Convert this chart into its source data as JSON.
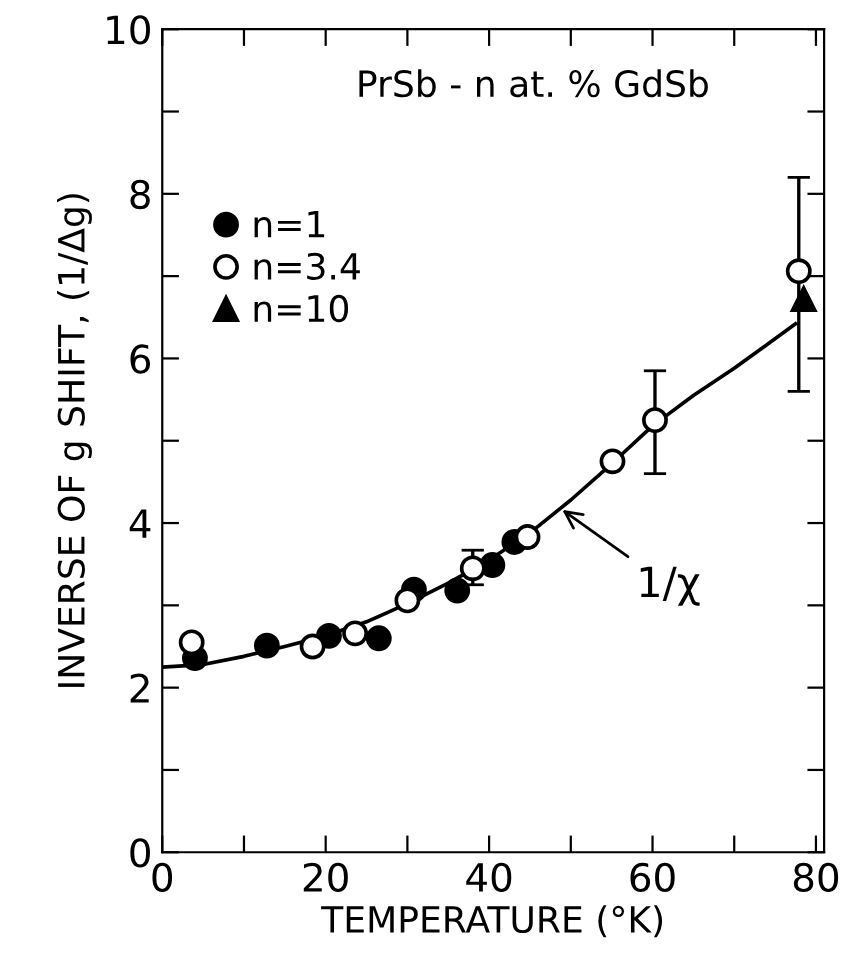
{
  "chart_data": {
    "type": "scatter",
    "xlabel": "TEMPERATURE (°K)",
    "ylabel": "INVERSE OF g SHIFT, (1/Δg)",
    "xlim": [
      0,
      81
    ],
    "ylim": [
      0,
      10
    ],
    "xticks": [
      0,
      {
        "value": 10,
        "label": null
      },
      20,
      {
        "value": 30,
        "label": null
      },
      40,
      {
        "value": 50,
        "label": null
      },
      60,
      {
        "value": 70,
        "label": null
      },
      80
    ],
    "yticks": [
      0,
      {
        "value": 1,
        "label": null
      },
      2,
      {
        "value": 3,
        "label": null
      },
      4,
      {
        "value": 5,
        "label": null
      },
      6,
      {
        "value": 7,
        "label": null
      },
      8,
      {
        "value": 9,
        "label": null
      },
      10
    ],
    "grid": false,
    "legend": "top left",
    "annotations": [
      "PrSb - n at. % GdSb",
      {
        "text": "1/χ",
        "x": 48.4,
        "y": 4.2
      }
    ],
    "series": [
      {
        "name": "n=1",
        "color": "#000000",
        "marker": "circle",
        "x": [
          4.0,
          12.8,
          20.4,
          26.5,
          30.8,
          36.1,
          40.4,
          43.1
        ],
        "values": [
          2.36,
          2.51,
          2.63,
          2.6,
          3.19,
          3.18,
          3.49,
          3.77
        ]
      },
      {
        "name": "n=3.4",
        "color": "#ffffff",
        "marker": "circle",
        "x": [
          3.6,
          18.4,
          23.6,
          30.0,
          38.0,
          44.7,
          55.1,
          60.3,
          77.9
        ],
        "values": [
          2.55,
          2.5,
          2.66,
          3.06,
          3.45,
          3.83,
          4.75,
          5.25,
          7.06
        ],
        "errors": [
          null,
          null,
          null,
          null,
          [
            3.25,
            3.67
          ],
          null,
          null,
          [
            4.6,
            5.85
          ],
          [
            5.6,
            8.2
          ]
        ]
      },
      {
        "name": "n=10",
        "color": "#000000",
        "marker": "triangle",
        "x": [
          78.5
        ],
        "values": [
          6.72
        ]
      },
      {
        "type": "line",
        "color": "#000000",
        "marker": "none",
        "x": [
          0,
          5,
          10,
          15,
          20,
          25,
          30,
          35,
          40,
          45,
          50,
          55,
          60,
          65,
          70,
          77.5
        ],
        "values": [
          2.25,
          2.28,
          2.38,
          2.5,
          2.63,
          2.8,
          3.02,
          3.27,
          3.55,
          3.88,
          4.28,
          4.72,
          5.18,
          5.55,
          5.88,
          6.42
        ]
      }
    ]
  }
}
